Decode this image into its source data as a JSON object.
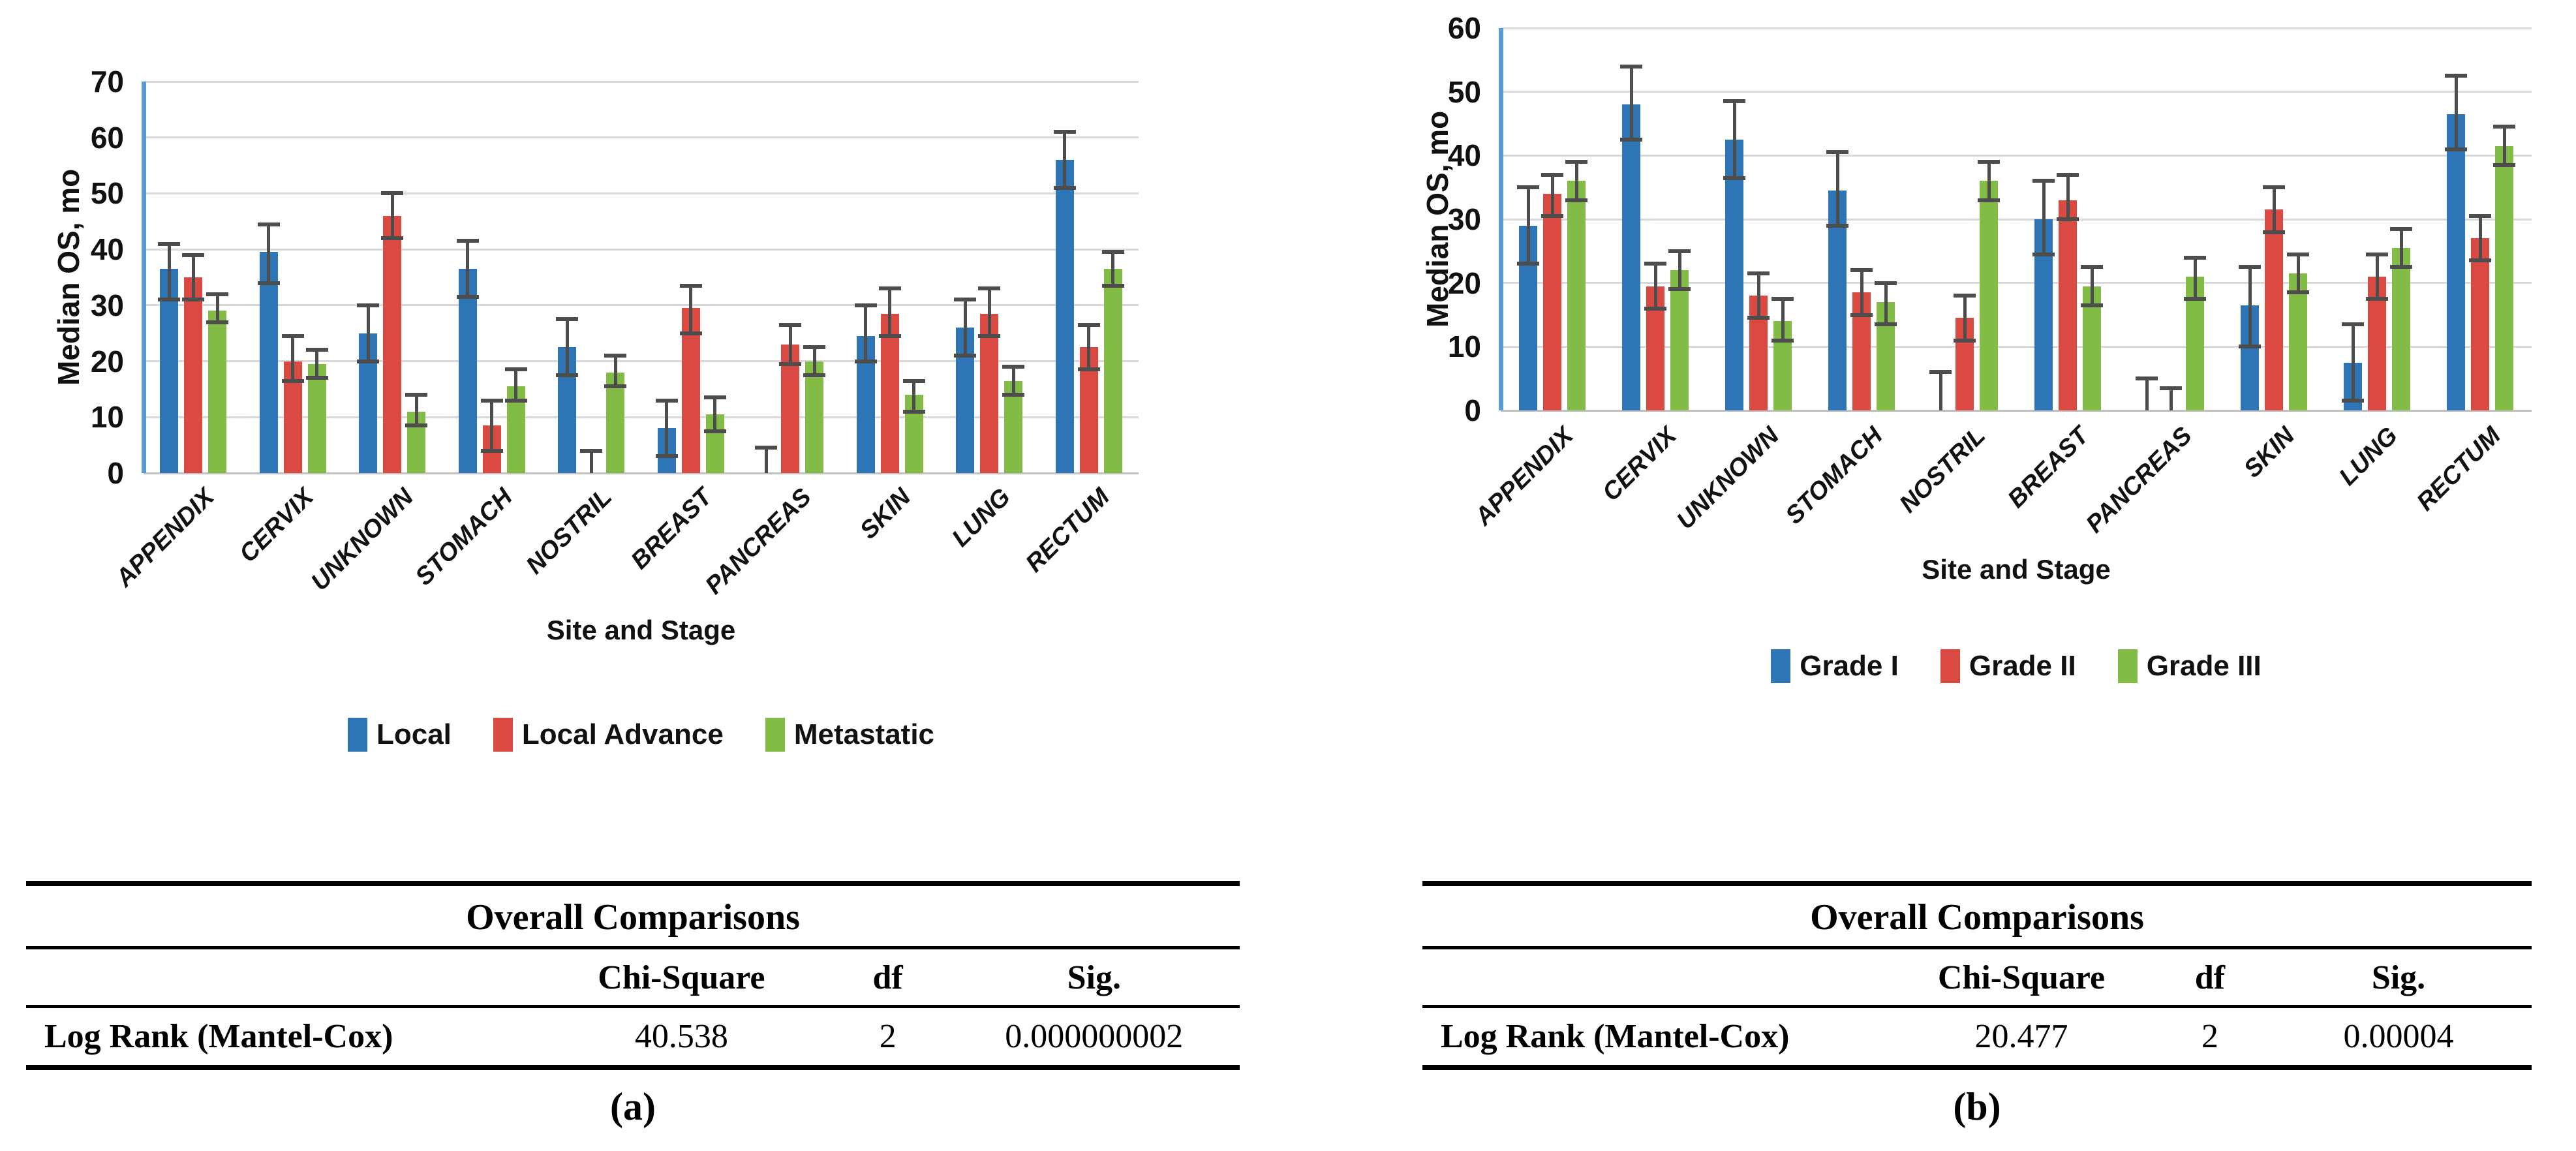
{
  "colors": {
    "series_blue": "#2E75B6",
    "series_red": "#DA4A42",
    "series_green": "#83BB47",
    "axis_line_blue": "#5B9BD5",
    "gridline": "#D9D9D9",
    "error_bar": "#4D4D4D"
  },
  "chart_data": [
    {
      "type": "bar",
      "title": "",
      "ylabel": "Median OS, mo",
      "xlabel": "Site and Stage",
      "ylim": [
        0,
        70
      ],
      "ytick_step": 10,
      "grid": true,
      "legend_position": "bottom",
      "categories": [
        "APPENDIX",
        "CERVIX",
        "UNKNOWN",
        "STOMACH",
        "NOSTRIL",
        "BREAST",
        "PANCREAS",
        "SKIN",
        "LUNG",
        "RECTUM"
      ],
      "series": [
        {
          "name": "Local",
          "color": "#2E75B6",
          "values": [
            36.5,
            39.5,
            25,
            36.5,
            22.5,
            8,
            0,
            24.5,
            26,
            56
          ],
          "err_low": [
            31,
            34,
            20,
            31.5,
            17.5,
            3,
            0,
            20,
            21,
            51
          ],
          "err_high": [
            41,
            44.5,
            30,
            41.5,
            27.5,
            13,
            4.5,
            30,
            31,
            61
          ]
        },
        {
          "name": "Local Advance",
          "color": "#DA4A42",
          "values": [
            35,
            20,
            46,
            8.5,
            0,
            29.5,
            23,
            28.5,
            28.5,
            22.5
          ],
          "err_low": [
            31,
            16.5,
            42,
            4,
            0,
            25,
            19.5,
            24.5,
            24.5,
            18.5
          ],
          "err_high": [
            39,
            24.5,
            50,
            13,
            4,
            33.5,
            26.5,
            33,
            33,
            26.5
          ]
        },
        {
          "name": "Metastatic",
          "color": "#83BB47",
          "values": [
            29,
            19.5,
            11,
            15.5,
            18,
            10.5,
            20,
            14,
            16.5,
            36.5
          ],
          "err_low": [
            27,
            17,
            8.5,
            13,
            15.5,
            7.5,
            17.5,
            11,
            14,
            33.5
          ],
          "err_high": [
            32,
            22,
            14,
            18.5,
            21,
            13.5,
            22.5,
            16.5,
            19,
            39.5
          ]
        }
      ]
    },
    {
      "type": "bar",
      "title": "",
      "ylabel": "Median OS, mo",
      "xlabel": "Site and Stage",
      "ylim": [
        0,
        60
      ],
      "ytick_step": 10,
      "grid": true,
      "legend_position": "bottom",
      "categories": [
        "APPENDIX",
        "CERVIX",
        "UNKNOWN",
        "STOMACH",
        "NOSTRIL",
        "BREAST",
        "PANCREAS",
        "SKIN",
        "LUNG",
        "RECTUM"
      ],
      "series": [
        {
          "name": "Grade I",
          "color": "#2E75B6",
          "values": [
            29,
            48,
            42.5,
            34.5,
            0,
            30,
            0,
            16.5,
            7.5,
            46.5
          ],
          "err_low": [
            23,
            42.5,
            36.5,
            29,
            0,
            24.5,
            0,
            10,
            1.5,
            41
          ],
          "err_high": [
            35,
            54,
            48.5,
            40.5,
            6,
            36,
            5,
            22.5,
            13.5,
            52.5
          ]
        },
        {
          "name": "Grade II",
          "color": "#DA4A42",
          "values": [
            34,
            19.5,
            18,
            18.5,
            14.5,
            33,
            0,
            31.5,
            21,
            27
          ],
          "err_low": [
            30.5,
            16,
            14.5,
            15,
            11,
            30,
            0,
            28,
            17.5,
            23.5
          ],
          "err_high": [
            37,
            23,
            21.5,
            22,
            18,
            37,
            3.5,
            35,
            24.5,
            30.5
          ]
        },
        {
          "name": "Grade III",
          "color": "#83BB47",
          "values": [
            36,
            22,
            14,
            17,
            36,
            19.5,
            21,
            21.5,
            25.5,
            41.5
          ],
          "err_low": [
            33,
            19,
            11,
            13.5,
            33,
            16.5,
            17.5,
            18.5,
            22.5,
            38.5
          ],
          "err_high": [
            39,
            25,
            17.5,
            20,
            39,
            22.5,
            24,
            24.5,
            28.5,
            44.5
          ]
        }
      ]
    }
  ],
  "tables": [
    {
      "title": "Overall Comparisons",
      "columns": [
        "",
        "Chi-Square",
        "df",
        "Sig."
      ],
      "rows": [
        [
          "Log Rank (Mantel-Cox)",
          "40.538",
          "2",
          "0.000000002"
        ]
      ]
    },
    {
      "title": "Overall Comparisons",
      "columns": [
        "",
        "Chi-Square",
        "df",
        "Sig."
      ],
      "rows": [
        [
          "Log Rank (Mantel-Cox)",
          "20.477",
          "2",
          "0.00004"
        ]
      ]
    }
  ],
  "captions": [
    "(a)",
    "(b)"
  ]
}
